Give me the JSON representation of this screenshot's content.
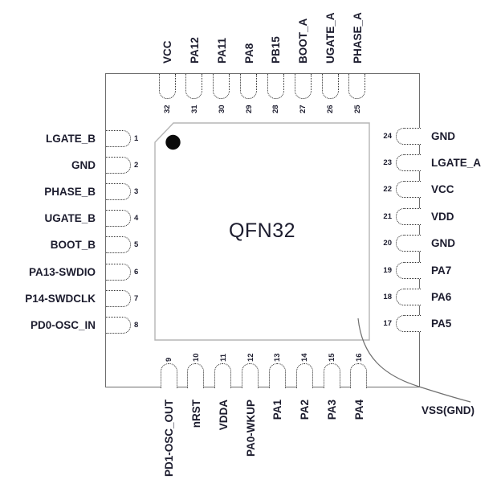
{
  "diagram": {
    "package_name": "QFN32",
    "exposed_pad_label": "VSS(GND)"
  },
  "pins": {
    "top": [
      {
        "number": "32",
        "label": "VCC"
      },
      {
        "number": "31",
        "label": "PA12"
      },
      {
        "number": "30",
        "label": "PA11"
      },
      {
        "number": "29",
        "label": "PA8"
      },
      {
        "number": "28",
        "label": "PB15"
      },
      {
        "number": "27",
        "label": "BOOT_A"
      },
      {
        "number": "26",
        "label": "UGATE_A"
      },
      {
        "number": "25",
        "label": "PHASE_A"
      }
    ],
    "left": [
      {
        "number": "1",
        "label": "LGATE_B"
      },
      {
        "number": "2",
        "label": "GND"
      },
      {
        "number": "3",
        "label": "PHASE_B"
      },
      {
        "number": "4",
        "label": "UGATE_B"
      },
      {
        "number": "5",
        "label": "BOOT_B"
      },
      {
        "number": "6",
        "label": "PA13-SWDIO"
      },
      {
        "number": "7",
        "label": "P14-SWDCLK"
      },
      {
        "number": "8",
        "label": "PD0-OSC_IN"
      }
    ],
    "right": [
      {
        "number": "24",
        "label": "GND"
      },
      {
        "number": "23",
        "label": "LGATE_A"
      },
      {
        "number": "22",
        "label": "VCC"
      },
      {
        "number": "21",
        "label": "VDD"
      },
      {
        "number": "20",
        "label": "GND"
      },
      {
        "number": "19",
        "label": "PA7"
      },
      {
        "number": "18",
        "label": "PA6"
      },
      {
        "number": "17",
        "label": "PA5"
      }
    ],
    "bottom": [
      {
        "number": "9",
        "label": "PD1-OSC_OUT"
      },
      {
        "number": "10",
        "label": "nRST"
      },
      {
        "number": "11",
        "label": "VDDA"
      },
      {
        "number": "12",
        "label": "PA0-WKUP"
      },
      {
        "number": "13",
        "label": "PA1"
      },
      {
        "number": "14",
        "label": "PA2"
      },
      {
        "number": "15",
        "label": "PA3"
      },
      {
        "number": "16",
        "label": "PA4"
      }
    ]
  },
  "colors": {
    "text": "#1c1c2e",
    "package_outline": "#6e6e6e",
    "die_outline": "#b5b5b5",
    "pad_outline": "#2b2b2b",
    "pin1_dot": "#0a0a0a",
    "leader_line": "#6f6f6f",
    "background": "#ffffff"
  }
}
